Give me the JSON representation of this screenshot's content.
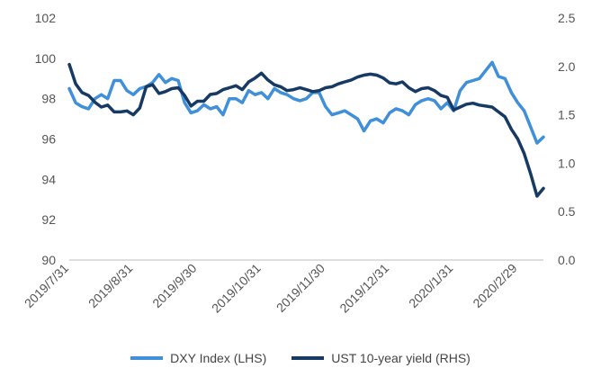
{
  "chart_data": {
    "type": "line",
    "title": "",
    "x": [
      "2019/7/31",
      "2019/8/3",
      "2019/8/6",
      "2019/8/9",
      "2019/8/12",
      "2019/8/15",
      "2019/8/18",
      "2019/8/21",
      "2019/8/24",
      "2019/8/27",
      "2019/8/31",
      "2019/9/3",
      "2019/9/6",
      "2019/9/9",
      "2019/9/12",
      "2019/9/15",
      "2019/9/18",
      "2019/9/21",
      "2019/9/24",
      "2019/9/27",
      "2019/9/30",
      "2019/10/3",
      "2019/10/6",
      "2019/10/9",
      "2019/10/12",
      "2019/10/15",
      "2019/10/18",
      "2019/10/21",
      "2019/10/24",
      "2019/10/27",
      "2019/10/31",
      "2019/11/3",
      "2019/11/6",
      "2019/11/9",
      "2019/11/12",
      "2019/11/15",
      "2019/11/18",
      "2019/11/21",
      "2019/11/24",
      "2019/11/27",
      "2019/11/30",
      "2019/12/3",
      "2019/12/6",
      "2019/12/9",
      "2019/12/12",
      "2019/12/15",
      "2019/12/18",
      "2019/12/21",
      "2019/12/24",
      "2019/12/27",
      "2019/12/31",
      "2020/1/3",
      "2020/1/6",
      "2020/1/9",
      "2020/1/12",
      "2020/1/15",
      "2020/1/18",
      "2020/1/21",
      "2020/1/24",
      "2020/1/27",
      "2020/1/31",
      "2020/2/3",
      "2020/2/6",
      "2020/2/9",
      "2020/2/12",
      "2020/2/15",
      "2020/2/18",
      "2020/2/21",
      "2020/2/24",
      "2020/2/27",
      "2020/2/29",
      "2020/3/3",
      "2020/3/6",
      "2020/3/9",
      "2020/3/12"
    ],
    "x_tick_labels": [
      "2019/7/31",
      "2019/8/31",
      "2019/9/30",
      "2019/10/31",
      "2019/11/30",
      "2019/12/31",
      "2020/1/31",
      "2020/2/29"
    ],
    "y_left_ticks": [
      "90",
      "92",
      "94",
      "96",
      "98",
      "100",
      "102"
    ],
    "y_right_ticks": [
      "0.0",
      "0.5",
      "1.0",
      "1.5",
      "2.0",
      "2.5"
    ],
    "ylim_left": [
      90,
      102
    ],
    "ylim_right": [
      0,
      2.5
    ],
    "grid": false,
    "legend_position": "bottom",
    "series": [
      {
        "name": "DXY Index (LHS)",
        "axis": "left",
        "color": "#3f8fdb",
        "values": [
          98.5,
          97.8,
          97.6,
          97.5,
          98.0,
          98.2,
          98.0,
          98.9,
          98.9,
          98.4,
          98.2,
          98.5,
          98.6,
          98.8,
          99.2,
          98.8,
          99.0,
          98.9,
          97.8,
          97.3,
          97.4,
          97.7,
          97.5,
          97.6,
          97.2,
          98.0,
          98.0,
          97.8,
          98.4,
          98.2,
          98.3,
          98.0,
          98.5,
          98.3,
          98.2,
          98.0,
          97.9,
          98.0,
          98.3,
          98.3,
          97.6,
          97.2,
          97.3,
          97.4,
          97.2,
          97.0,
          96.4,
          96.9,
          97.0,
          96.8,
          97.3,
          97.5,
          97.4,
          97.2,
          97.7,
          97.9,
          98.0,
          97.9,
          97.5,
          97.8,
          97.4,
          98.4,
          98.8,
          98.9,
          99.0,
          99.4,
          99.8,
          99.1,
          99.0,
          98.3,
          97.8,
          97.4,
          96.6,
          95.8,
          96.1
        ]
      },
      {
        "name": "UST 10-year yield (RHS)",
        "axis": "right",
        "color": "#173a64",
        "values": [
          2.02,
          1.82,
          1.73,
          1.7,
          1.63,
          1.58,
          1.6,
          1.53,
          1.53,
          1.54,
          1.5,
          1.57,
          1.79,
          1.81,
          1.72,
          1.74,
          1.77,
          1.78,
          1.7,
          1.59,
          1.64,
          1.64,
          1.71,
          1.72,
          1.76,
          1.78,
          1.8,
          1.76,
          1.84,
          1.88,
          1.93,
          1.86,
          1.81,
          1.79,
          1.75,
          1.76,
          1.78,
          1.76,
          1.74,
          1.75,
          1.78,
          1.79,
          1.82,
          1.84,
          1.86,
          1.89,
          1.91,
          1.92,
          1.91,
          1.88,
          1.83,
          1.82,
          1.84,
          1.78,
          1.74,
          1.77,
          1.78,
          1.75,
          1.7,
          1.68,
          1.55,
          1.58,
          1.61,
          1.62,
          1.6,
          1.59,
          1.58,
          1.53,
          1.48,
          1.35,
          1.25,
          1.1,
          0.89,
          0.66,
          0.74
        ]
      }
    ]
  }
}
